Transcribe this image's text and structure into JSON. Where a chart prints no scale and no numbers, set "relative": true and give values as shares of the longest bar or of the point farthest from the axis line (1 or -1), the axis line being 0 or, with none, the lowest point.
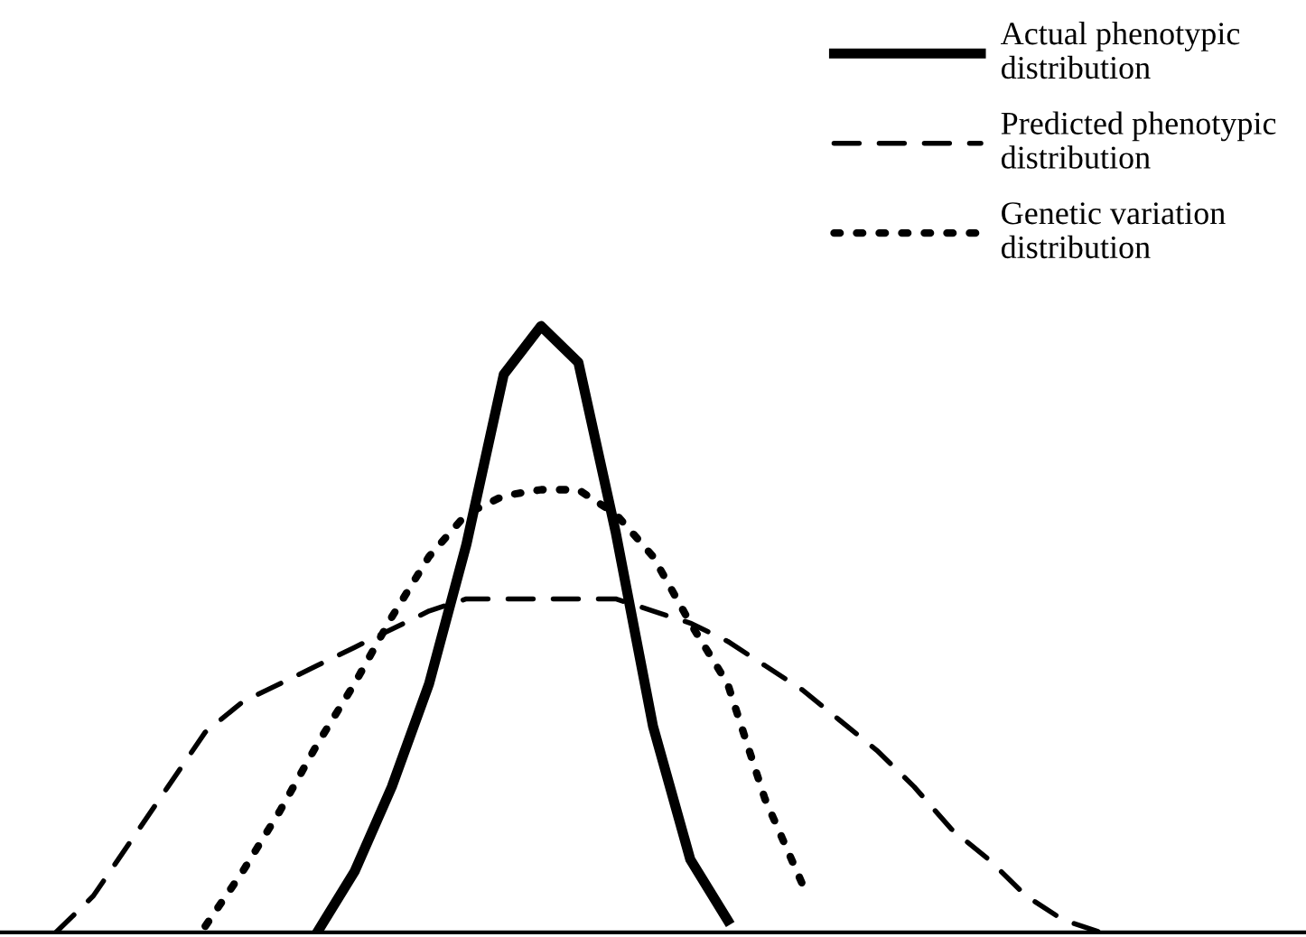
{
  "chart_data": {
    "type": "line",
    "relative": true,
    "legend": "top right",
    "marker": "none",
    "categories": [
      null,
      null,
      null,
      null,
      null,
      null,
      null,
      null,
      null,
      null,
      null,
      null,
      null,
      null,
      null,
      null,
      null,
      null,
      null,
      null,
      null,
      null,
      null,
      null,
      null,
      null,
      null,
      null,
      null
    ],
    "series": [
      {
        "name": "Actual phenotypic distribution",
        "color": "#000000",
        "line_style": "solid",
        "values": [
          null,
          null,
          null,
          null,
          null,
          null,
          null,
          0,
          0.1,
          0.24,
          0.41,
          0.64,
          0.92,
          1,
          0.94,
          0.66,
          0.34,
          0.12,
          0.02,
          null,
          null,
          null,
          null,
          null,
          null,
          null,
          null,
          null,
          null
        ]
      },
      {
        "name": "Predicted phenotypic distribution",
        "color": "#000000",
        "line_style": "dashed",
        "values": [
          0,
          0.06,
          0.15,
          0.24,
          0.33,
          0.38,
          0.41,
          0.44,
          0.47,
          0.5,
          0.53,
          0.55,
          0.55,
          0.55,
          0.55,
          0.55,
          0.53,
          0.51,
          0.48,
          0.44,
          0.4,
          0.35,
          0.3,
          0.24,
          0.17,
          0.12,
          0.06,
          0.02,
          0
        ]
      },
      {
        "name": "Genetic variation distribution",
        "color": "#000000",
        "line_style": "dotted",
        "values": [
          null,
          null,
          null,
          null,
          0.01,
          0.1,
          0.2,
          0.31,
          0.41,
          0.52,
          0.62,
          0.69,
          0.72,
          0.73,
          0.73,
          0.69,
          0.62,
          0.51,
          0.41,
          0.22,
          0.08,
          null,
          null,
          null,
          null,
          null,
          null,
          null,
          null
        ]
      }
    ]
  }
}
